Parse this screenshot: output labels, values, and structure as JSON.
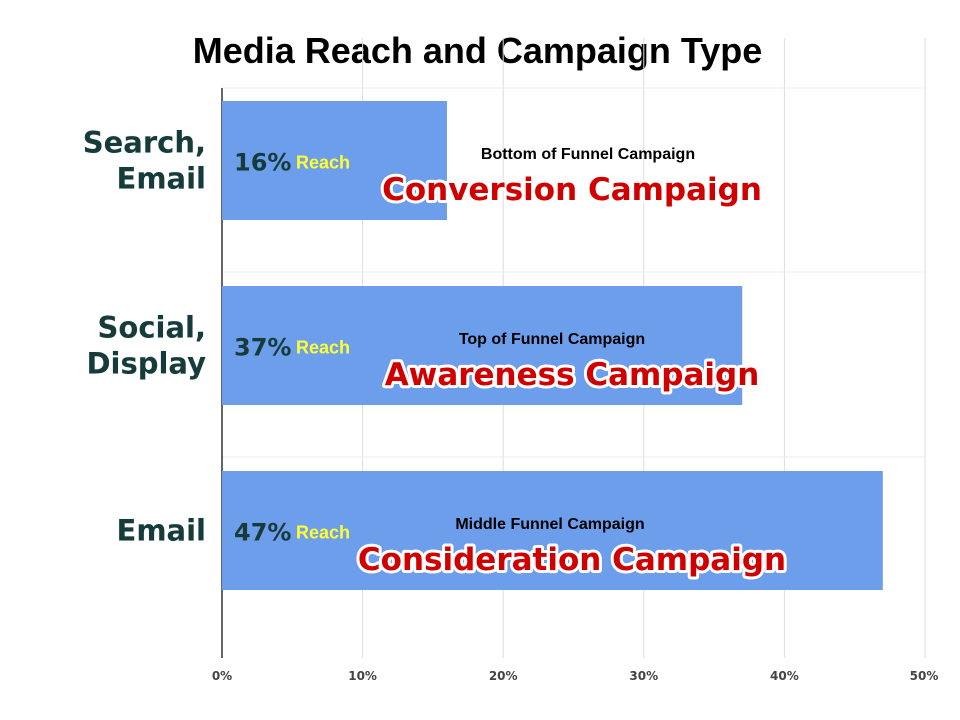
{
  "chart_data": {
    "type": "bar",
    "orientation": "horizontal",
    "title": "Media Reach and Campaign Type",
    "categories": [
      {
        "label": "Search,\nEmail",
        "value": 16,
        "display": "16%",
        "reach_label": "Reach",
        "funnel_label": "Bottom of Funnel Campaign",
        "campaign_label": "Conversion Campaign"
      },
      {
        "label": "Social,\nDisplay",
        "value": 37,
        "display": "37%",
        "reach_label": "Reach",
        "funnel_label": "Top of Funnel Campaign",
        "campaign_label": "Awareness Campaign"
      },
      {
        "label": "Email",
        "value": 47,
        "display": "47%",
        "reach_label": "Reach",
        "funnel_label": "Middle Funnel Campaign",
        "campaign_label": "Consideration Campaign"
      }
    ],
    "x_ticks": [
      "0%",
      "10%",
      "20%",
      "30%",
      "40%",
      "50%"
    ],
    "xlim": [
      0,
      50
    ],
    "grid": true,
    "legend": "none",
    "colors": {
      "bar": "#6d9eeb",
      "campaign_text": "#d00000",
      "reach_text": "#ffff33",
      "category_text": "#173b3b"
    }
  }
}
